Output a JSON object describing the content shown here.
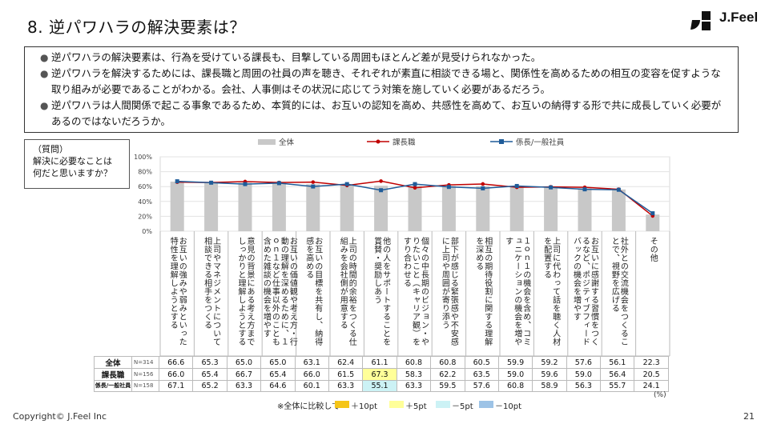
{
  "title": "8. 逆パワハラの解決要素は？",
  "logo_text": "J.Feel",
  "summary": [
    "逆パワハラの解決要素は、行為を受けている課長も、目撃している周囲もほとんど差が見受けられなかった。",
    "逆パワハラを解決するためには、課長職と周囲の社員の声を聴き、それぞれが素直に相談できる場と、関係性を高めるための相互の変容を促すような取り組みが必要であることがわかる。会社、人事側はその状況に応じてう対策を施していく必要があるだろう。",
    "逆パワハラは人間関係で起こる事象であるため、本質的には、お互いの認知を高め、共感性を高めて、お互いの納得する形で共に成長していく必要があるのではないだろうか。"
  ],
  "question": {
    "label": "（質問）",
    "text1": "解決に必要なことは",
    "text2": "何だと思いますか？"
  },
  "chart_data": {
    "type": "bar+line",
    "ylim": [
      0,
      100
    ],
    "y_ticks": [
      "100%",
      "80%",
      "60%",
      "40%",
      "20%",
      "0%"
    ],
    "legend": [
      "全体",
      "課長職",
      "係長/一般社員"
    ],
    "categories": [
      "お互いの強みや弱みといった特性を理解しようとする",
      "上司やマネジメントについて相談できる相手をつくる",
      "意見の背景にある考え方までしっかりと理解しようとする",
      "お互いの価値観や考え方・行動の理解を深めるために、１ｏｎ１など仕事以外のことも含めた雑談の機会を増やす",
      "お互いの目標を共有し、納得感を高める",
      "上司の時間的余裕をつくる仕組みを会社側が用意する",
      "他の人をサポートすることを賞賛・奨励しあう",
      "個々の中長期のビジョン・やりたいこと（キャリア観）をすり合わせる",
      "部下が感じる緊張感や不安感に上司や周囲が寄り添う",
      "相互の期待役割に関する理解を深める",
      "１ｏｎ１の機会を含め、コミュニケーションの機会を増やす",
      "上司に代わって話を聴く人材を配置する",
      "お互いに感謝する習慣をつくるなど、ポジティブフィードバックの機会を増やす",
      "社外との交流機会をつくることで、視野を広げる",
      "その他"
    ],
    "series": [
      {
        "name": "全体",
        "n": "N=314",
        "values": [
          66.6,
          65.3,
          65.0,
          65.0,
          63.1,
          62.4,
          61.1,
          60.8,
          60.8,
          60.5,
          59.9,
          59.2,
          57.6,
          56.1,
          22.3
        ]
      },
      {
        "name": "課長職",
        "n": "N=156",
        "values": [
          66.0,
          65.4,
          66.7,
          65.4,
          66.0,
          61.5,
          67.3,
          58.3,
          62.2,
          63.5,
          59.0,
          59.6,
          59.0,
          56.4,
          20.5
        ]
      },
      {
        "name": "係長/一般社員",
        "n": "N=158",
        "values": [
          67.1,
          65.2,
          63.3,
          64.6,
          60.1,
          63.3,
          55.1,
          63.3,
          59.5,
          57.6,
          60.8,
          58.9,
          56.3,
          55.7,
          24.1
        ]
      }
    ],
    "unit": "(%)"
  },
  "key": {
    "label": "※全体に比較して",
    "items": [
      "＋10pt",
      "＋5pt",
      "－5pt",
      "－10pt"
    ]
  },
  "colors": {
    "bar": "#c8c8c8",
    "kacho": "#c00000",
    "kakari": "#1f5c99",
    "p10": "#f5c518",
    "p5": "#ffff99",
    "m5": "#ccf2f5",
    "m10": "#9dc3e6"
  },
  "footer": {
    "copyright": "Copyright©  J.Feel Inc",
    "page": "21"
  }
}
